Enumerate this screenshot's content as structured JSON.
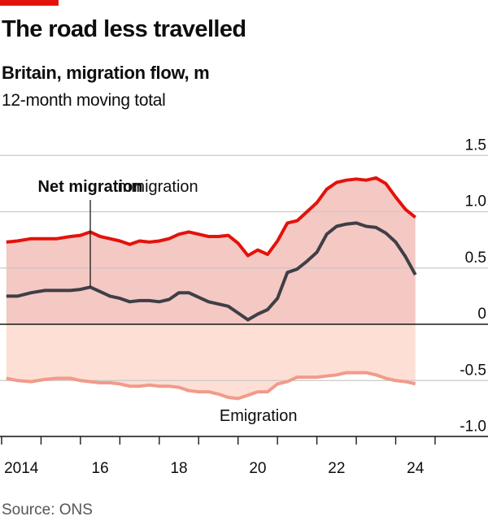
{
  "header": {
    "title": "The road less travelled",
    "subtitle": "Britain, migration flow, m",
    "note": "12-month moving total"
  },
  "footer": {
    "source": "Source: ONS"
  },
  "colors": {
    "accent": "#e3120b",
    "immigration": "#e3120b",
    "net": "#3f3f46",
    "emigration": "#f19b8a",
    "fill_positive": "#f4c8c3",
    "fill_negative": "#fddfd6",
    "grid": "#c9c9c9",
    "zero_line": "#1a1a1a"
  },
  "chart_data": {
    "type": "line",
    "title": "The road less travelled",
    "subtitle": "Britain, migration flow, m",
    "note": "12-month moving total",
    "xlabel": "",
    "ylabel": "m",
    "xlim": [
      2014.0,
      2025.0
    ],
    "ylim": [
      -1.0,
      1.5
    ],
    "y_ticks": [
      1.5,
      1.0,
      0.5,
      0,
      -0.5,
      -1.0
    ],
    "y_tick_labels": [
      "1.5",
      "1.0",
      "0.5",
      "0",
      "-0.5",
      "-1.0"
    ],
    "x_tick_years": [
      2014,
      2015,
      2016,
      2017,
      2018,
      2019,
      2020,
      2021,
      2022,
      2023,
      2024,
      2025
    ],
    "x_labels": [
      {
        "year": 2014,
        "label": "2014"
      },
      {
        "year": 2016,
        "label": "16"
      },
      {
        "year": 2018,
        "label": "18"
      },
      {
        "year": 2020,
        "label": "20"
      },
      {
        "year": 2022,
        "label": "22"
      },
      {
        "year": 2024,
        "label": "24"
      }
    ],
    "y_axis_position": "right",
    "grid": true,
    "annotations": [
      {
        "text": "Net migration",
        "series": "Net migration",
        "x": 2016.0,
        "style": "bold",
        "leader_line": true
      },
      {
        "text": "Immigration",
        "series": "Immigration",
        "x": 2017.9,
        "style": "normal"
      },
      {
        "text": "Emigration",
        "series": "Emigration",
        "x": 2020.0,
        "style": "normal"
      }
    ],
    "series": [
      {
        "name": "Immigration",
        "x": [
          2014.12,
          2014.4,
          2014.75,
          2015.1,
          2015.4,
          2015.75,
          2016.0,
          2016.25,
          2016.5,
          2016.75,
          2017.0,
          2017.25,
          2017.5,
          2017.75,
          2018.0,
          2018.25,
          2018.5,
          2018.75,
          2019.0,
          2019.25,
          2019.5,
          2019.75,
          2020.0,
          2020.25,
          2020.5,
          2020.75,
          2021.0,
          2021.25,
          2021.5,
          2021.75,
          2022.0,
          2022.25,
          2022.5,
          2022.75,
          2023.0,
          2023.25,
          2023.5,
          2023.75,
          2024.0,
          2024.25,
          2024.5
        ],
        "values": [
          0.73,
          0.74,
          0.76,
          0.76,
          0.76,
          0.78,
          0.79,
          0.82,
          0.78,
          0.76,
          0.74,
          0.71,
          0.74,
          0.73,
          0.74,
          0.76,
          0.8,
          0.82,
          0.8,
          0.78,
          0.78,
          0.79,
          0.72,
          0.61,
          0.66,
          0.62,
          0.74,
          0.9,
          0.92,
          1.0,
          1.08,
          1.2,
          1.26,
          1.28,
          1.29,
          1.28,
          1.3,
          1.25,
          1.13,
          1.02,
          0.95
        ]
      },
      {
        "name": "Net migration",
        "x": [
          2014.12,
          2014.4,
          2014.75,
          2015.1,
          2015.4,
          2015.75,
          2016.0,
          2016.25,
          2016.5,
          2016.75,
          2017.0,
          2017.25,
          2017.5,
          2017.75,
          2018.0,
          2018.25,
          2018.5,
          2018.75,
          2019.0,
          2019.25,
          2019.5,
          2019.75,
          2020.0,
          2020.25,
          2020.5,
          2020.75,
          2021.0,
          2021.25,
          2021.5,
          2021.75,
          2022.0,
          2022.25,
          2022.5,
          2022.75,
          2023.0,
          2023.25,
          2023.5,
          2023.75,
          2024.0,
          2024.25,
          2024.5
        ],
        "values": [
          0.25,
          0.25,
          0.28,
          0.3,
          0.3,
          0.3,
          0.31,
          0.33,
          0.29,
          0.25,
          0.23,
          0.2,
          0.21,
          0.21,
          0.2,
          0.22,
          0.28,
          0.28,
          0.24,
          0.2,
          0.18,
          0.16,
          0.1,
          0.04,
          0.09,
          0.13,
          0.23,
          0.46,
          0.49,
          0.56,
          0.64,
          0.8,
          0.87,
          0.89,
          0.9,
          0.87,
          0.86,
          0.81,
          0.73,
          0.6,
          0.44
        ]
      },
      {
        "name": "Emigration",
        "x": [
          2014.12,
          2014.4,
          2014.75,
          2015.1,
          2015.4,
          2015.75,
          2016.0,
          2016.25,
          2016.5,
          2016.75,
          2017.0,
          2017.25,
          2017.5,
          2017.75,
          2018.0,
          2018.25,
          2018.5,
          2018.75,
          2019.0,
          2019.25,
          2019.5,
          2019.75,
          2020.0,
          2020.25,
          2020.5,
          2020.75,
          2021.0,
          2021.25,
          2021.5,
          2021.75,
          2022.0,
          2022.25,
          2022.5,
          2022.75,
          2023.0,
          2023.25,
          2023.5,
          2023.75,
          2024.0,
          2024.25,
          2024.5
        ],
        "values": [
          -0.48,
          -0.5,
          -0.51,
          -0.49,
          -0.48,
          -0.48,
          -0.5,
          -0.51,
          -0.52,
          -0.52,
          -0.53,
          -0.55,
          -0.55,
          -0.54,
          -0.55,
          -0.55,
          -0.56,
          -0.59,
          -0.6,
          -0.6,
          -0.62,
          -0.65,
          -0.66,
          -0.63,
          -0.6,
          -0.6,
          -0.53,
          -0.51,
          -0.47,
          -0.47,
          -0.47,
          -0.46,
          -0.45,
          -0.43,
          -0.43,
          -0.43,
          -0.45,
          -0.48,
          -0.5,
          -0.51,
          -0.53
        ]
      }
    ]
  }
}
